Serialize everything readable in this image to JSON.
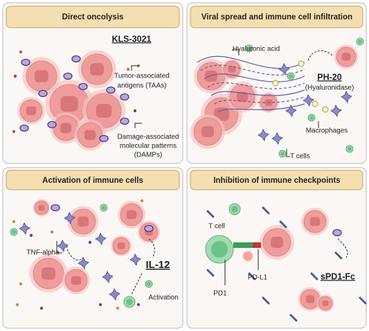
{
  "panels": [
    {
      "title": "Direct oncolysis",
      "agent": "KLS-3021",
      "labels": [
        "Tumor-associated",
        "antigens (TAAs)",
        "Damage-associated",
        "molecular patterns",
        "(DAMPs)"
      ]
    },
    {
      "title": "Viral spread and immune cell infiltration",
      "agent": "PH-20",
      "labels": [
        "Hyaluronic acid",
        "(Hyaluronidase)",
        "Macrophages",
        "T cells"
      ]
    },
    {
      "title": "Activation of immune cells",
      "agent": "IL-12",
      "labels": [
        "TNF-alpha",
        "Activation"
      ]
    },
    {
      "title": "Inhibition of immune checkpoints",
      "agent": "sPD1-Fc",
      "labels": [
        "T cell",
        "PD1",
        "PD-L1"
      ]
    }
  ]
}
